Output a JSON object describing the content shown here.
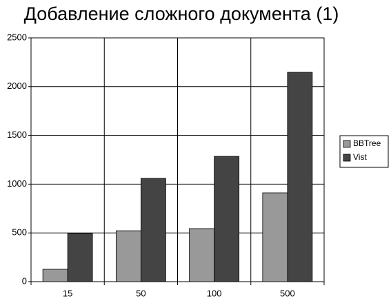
{
  "chart_data": {
    "type": "bar",
    "title": "Добавление сложного документа (1)",
    "categories": [
      "15",
      "50",
      "100",
      "500"
    ],
    "series": [
      {
        "name": "BBTree",
        "color": "#999999",
        "values": [
          127,
          522,
          544,
          911
        ]
      },
      {
        "name": "Vist",
        "color": "#444444",
        "values": [
          494,
          1059,
          1285,
          2147
        ]
      }
    ],
    "ylim": [
      0,
      2500
    ],
    "yticks": [
      0,
      500,
      1000,
      1500,
      2000,
      2500
    ],
    "grid": true,
    "legend": "right"
  }
}
